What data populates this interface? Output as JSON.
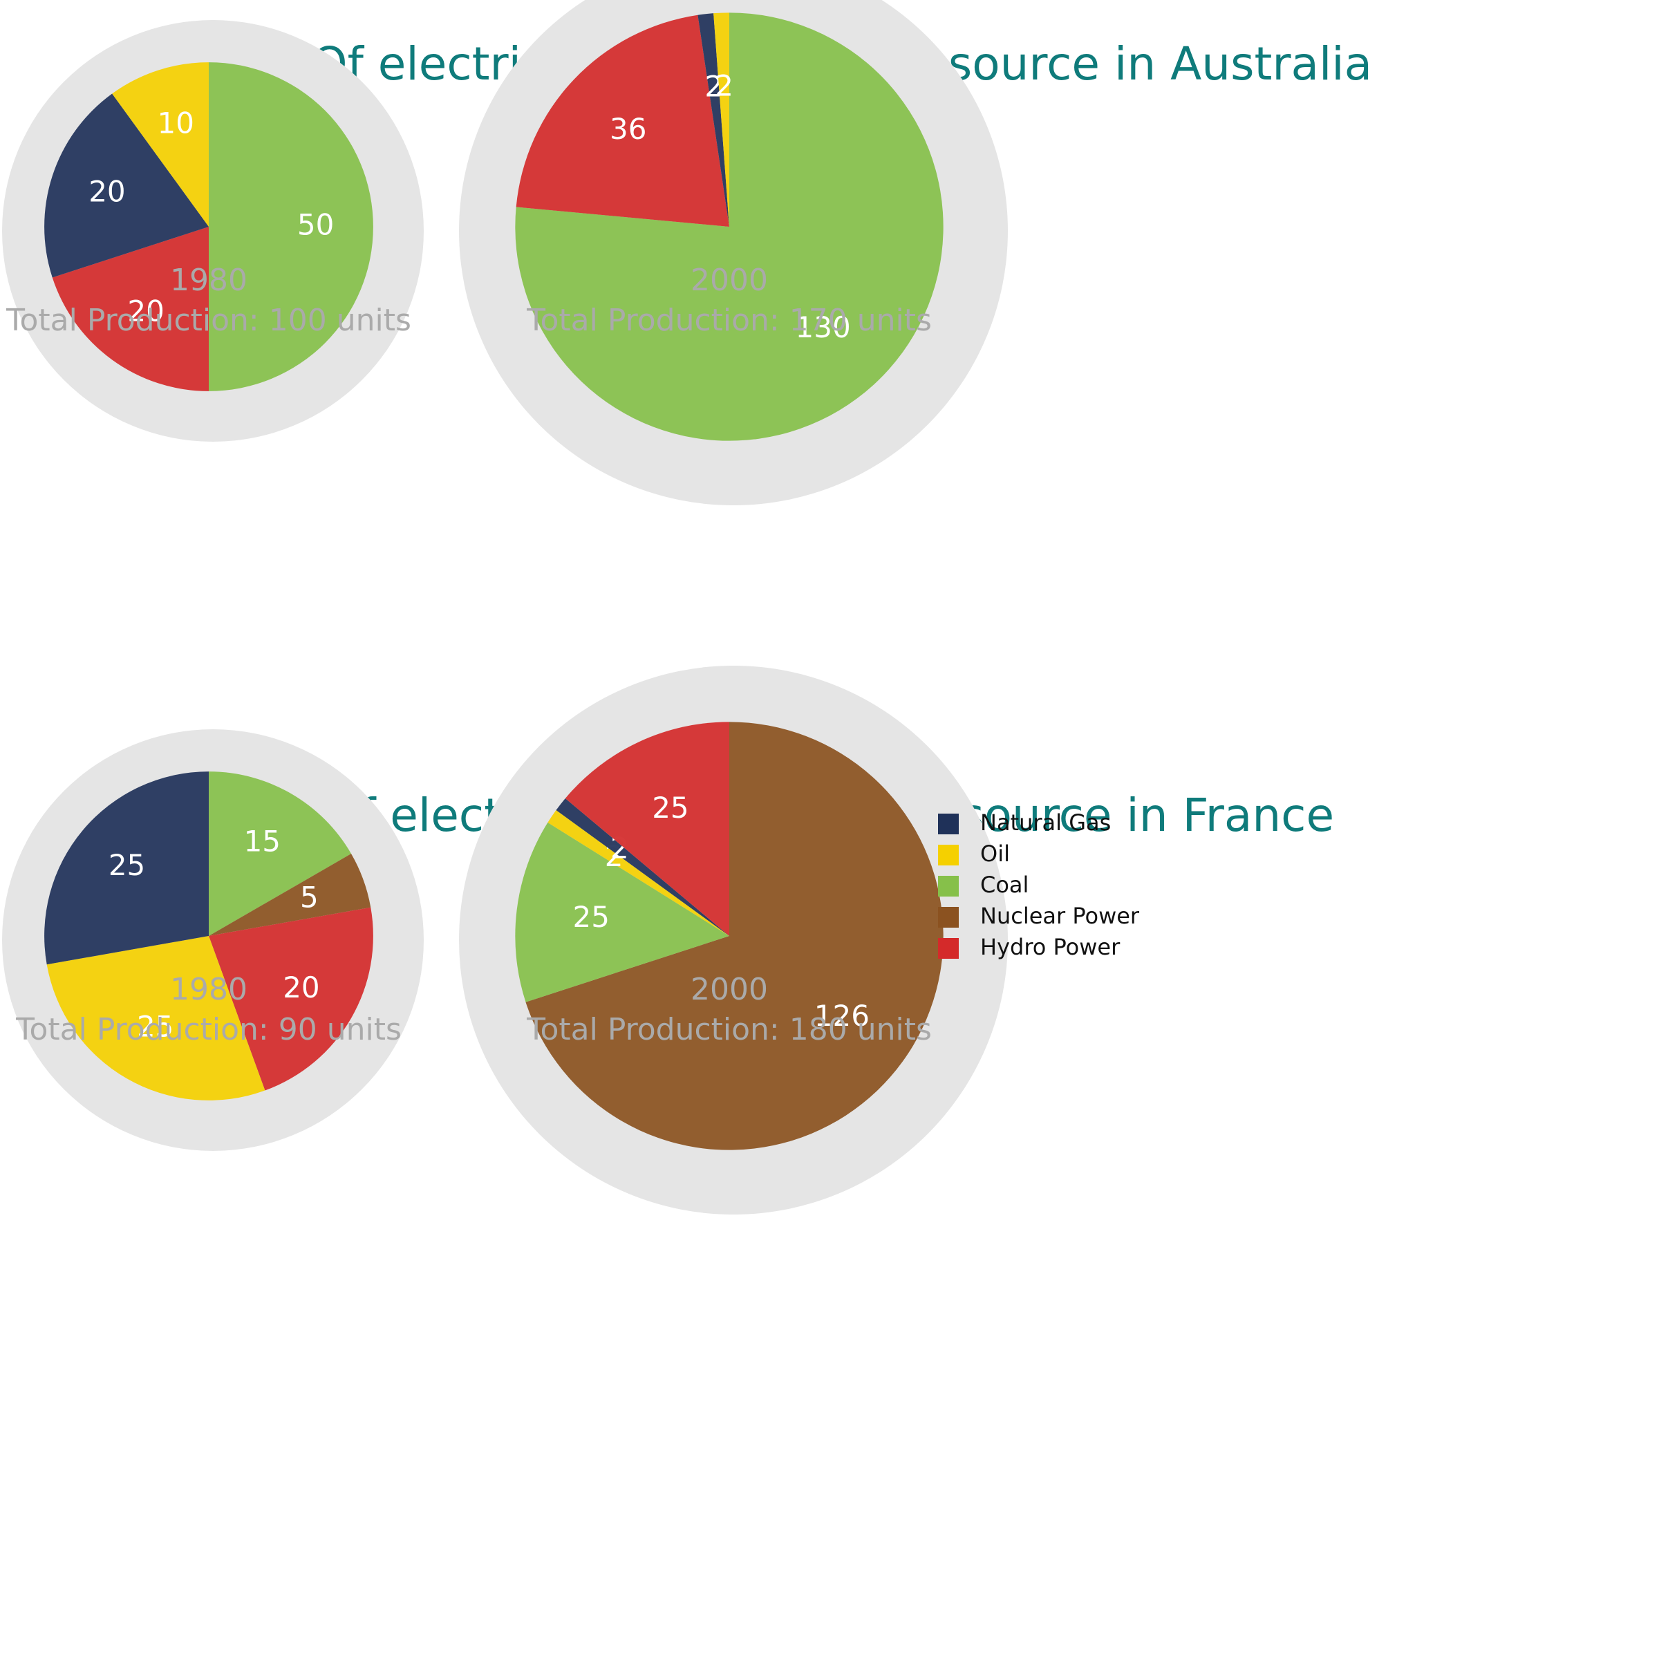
{
  "chart_data": [
    {
      "type": "pie",
      "title": "Units Of electricity production by source in Australia",
      "year": "1980",
      "subtitle": "Total Production: 100 units",
      "categories": [
        "Coal",
        "Hydro Power",
        "Natural Gas",
        "Oil",
        "Nuclear Power"
      ],
      "values": [
        50,
        20,
        20,
        10,
        0
      ],
      "colors": [
        "#86c04a",
        "#d42a2a",
        "#1f3159",
        "#f5d000",
        "#8b5220"
      ]
    },
    {
      "type": "pie",
      "year": "2000",
      "subtitle": "Total Production: 170 units",
      "categories": [
        "Coal",
        "Hydro Power",
        "Natural Gas",
        "Oil",
        "Nuclear Power"
      ],
      "values": [
        130,
        36,
        2,
        2,
        0
      ],
      "colors": [
        "#86c04a",
        "#d42a2a",
        "#1f3159",
        "#f5d000",
        "#8b5220"
      ]
    },
    {
      "type": "pie",
      "title": "Units of electricity production by source in France",
      "year": "1980",
      "subtitle": "Total Production: 90 units",
      "categories": [
        "Coal",
        "Nuclear Power",
        "Hydro Power",
        "Oil",
        "Natural Gas"
      ],
      "values": [
        15,
        5,
        20,
        25,
        25
      ],
      "colors": [
        "#86c04a",
        "#8b5220",
        "#d42a2a",
        "#f5d000",
        "#1f3159"
      ]
    },
    {
      "type": "pie",
      "year": "2000",
      "subtitle": "Total Production: 180 units",
      "categories": [
        "Nuclear Power",
        "Coal",
        "Oil",
        "Natural Gas",
        "Hydro Power"
      ],
      "values": [
        126,
        25,
        2,
        2,
        25
      ],
      "colors": [
        "#8b5220",
        "#86c04a",
        "#f5d000",
        "#1f3159",
        "#d42a2a"
      ],
      "legend": {
        "labels": [
          "Natural Gas",
          "Oil",
          "Coal",
          "Nuclear Power",
          "Hydro Power"
        ],
        "colors": [
          "#1f3159",
          "#f5d000",
          "#86c04a",
          "#8b5220",
          "#d42a2a"
        ]
      }
    }
  ]
}
